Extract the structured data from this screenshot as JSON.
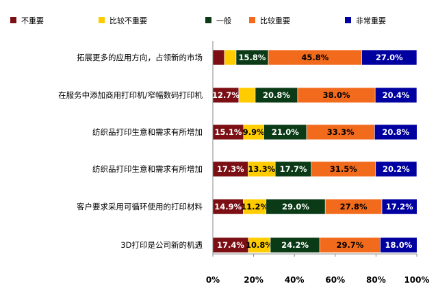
{
  "chart_data": {
    "type": "bar",
    "orientation": "horizontal",
    "stacked": true,
    "legend_position": "top",
    "categories": [
      "拓展更多的应用方向，占领新的市场",
      "在服务中添加商用打印机/窄幅数码打印机",
      "纺织品打印生意和需求有所增加",
      "纺织品打印生意和需求有所增加",
      "客户要求采用可循环使用的打印材料",
      "3D打印是公司新的机遇"
    ],
    "series": [
      {
        "name": "不重要",
        "color": "#7B0F14",
        "text_color": "#ffffff",
        "values": [
          5.7,
          12.7,
          15.1,
          17.3,
          14.9,
          17.4
        ],
        "labels": [
          "",
          "12.7%",
          "15.1%",
          "17.3%",
          "14.9%",
          "17.4%"
        ]
      },
      {
        "name": "比较不重要",
        "color": "#FFCC00",
        "text_color": "#000000",
        "values": [
          5.7,
          8.1,
          9.9,
          13.3,
          11.2,
          10.8
        ],
        "labels": [
          "",
          "",
          "9.9%",
          "13.3%",
          "11.2%",
          "10.8%"
        ]
      },
      {
        "name": "一般",
        "color": "#0B3B16",
        "text_color": "#ffffff",
        "values": [
          15.8,
          20.8,
          21.0,
          17.7,
          29.0,
          24.2
        ],
        "labels": [
          "15.8%",
          "20.8%",
          "21.0%",
          "17.7%",
          "29.0%",
          "24.2%"
        ]
      },
      {
        "name": "比较重要",
        "color": "#F26A1B",
        "text_color": "#000000",
        "values": [
          45.8,
          38.0,
          33.3,
          31.5,
          27.8,
          29.7
        ],
        "labels": [
          "45.8%",
          "38.0%",
          "33.3%",
          "31.5%",
          "27.8%",
          "29.7%"
        ]
      },
      {
        "name": "非常重要",
        "color": "#0000A0",
        "text_color": "#ffffff",
        "values": [
          27.0,
          20.4,
          20.8,
          20.2,
          17.2,
          18.0
        ],
        "labels": [
          "27.0%",
          "20.4%",
          "20.8%",
          "20.2%",
          "17.2%",
          "18.0%"
        ]
      }
    ],
    "xlim": [
      0,
      100
    ],
    "x_ticks": [
      "0%",
      "20%",
      "40%",
      "60%",
      "80%",
      "100%"
    ],
    "grid": false
  }
}
